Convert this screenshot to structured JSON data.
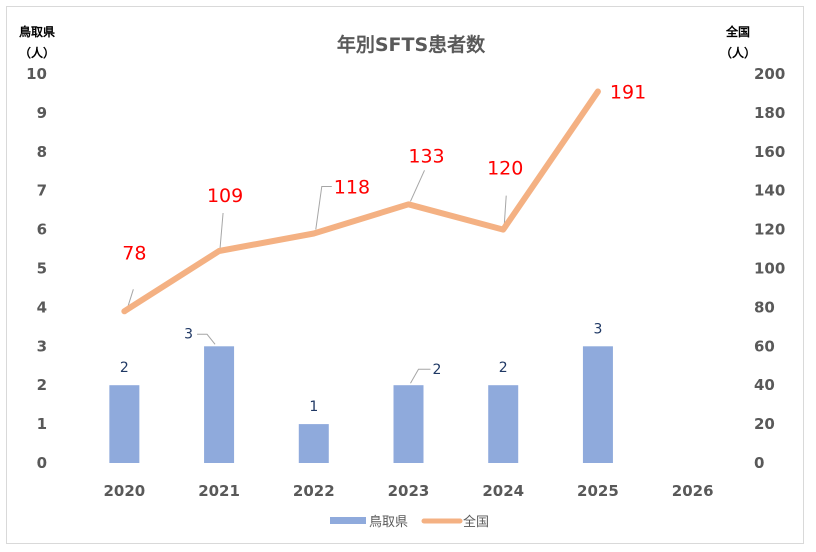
{
  "chart_data": {
    "type": "bar",
    "title": "年別SFTS患者数",
    "y_left_label": [
      "鳥取県",
      "（人）"
    ],
    "y_right_label": [
      "全国",
      "（人）"
    ],
    "categories": [
      "2020",
      "2021",
      "2022",
      "2023",
      "2024",
      "2025",
      "2026"
    ],
    "ylim_left": [
      0,
      10
    ],
    "yticks_left": [
      "0",
      "1",
      "2",
      "3",
      "4",
      "5",
      "6",
      "7",
      "8",
      "9",
      "10"
    ],
    "ylim_right": [
      0,
      200
    ],
    "yticks_right": [
      "0",
      "20",
      "40",
      "60",
      "80",
      "100",
      "120",
      "140",
      "160",
      "180",
      "200"
    ],
    "grid": false,
    "legend_position": "bottom",
    "series": [
      {
        "name": "鳥取県",
        "type": "bar",
        "axis": "left",
        "color": "#8faadc",
        "values": [
          2,
          3,
          1,
          2,
          2,
          3,
          null
        ],
        "labels": [
          "2",
          "3",
          "1",
          "2",
          "2",
          "3",
          ""
        ]
      },
      {
        "name": "全国",
        "type": "line",
        "axis": "right",
        "color": "#f4b183",
        "values": [
          78,
          109,
          118,
          133,
          120,
          191,
          null
        ],
        "labels": [
          "78",
          "109",
          "118",
          "133",
          "120",
          "191",
          ""
        ]
      }
    ]
  }
}
